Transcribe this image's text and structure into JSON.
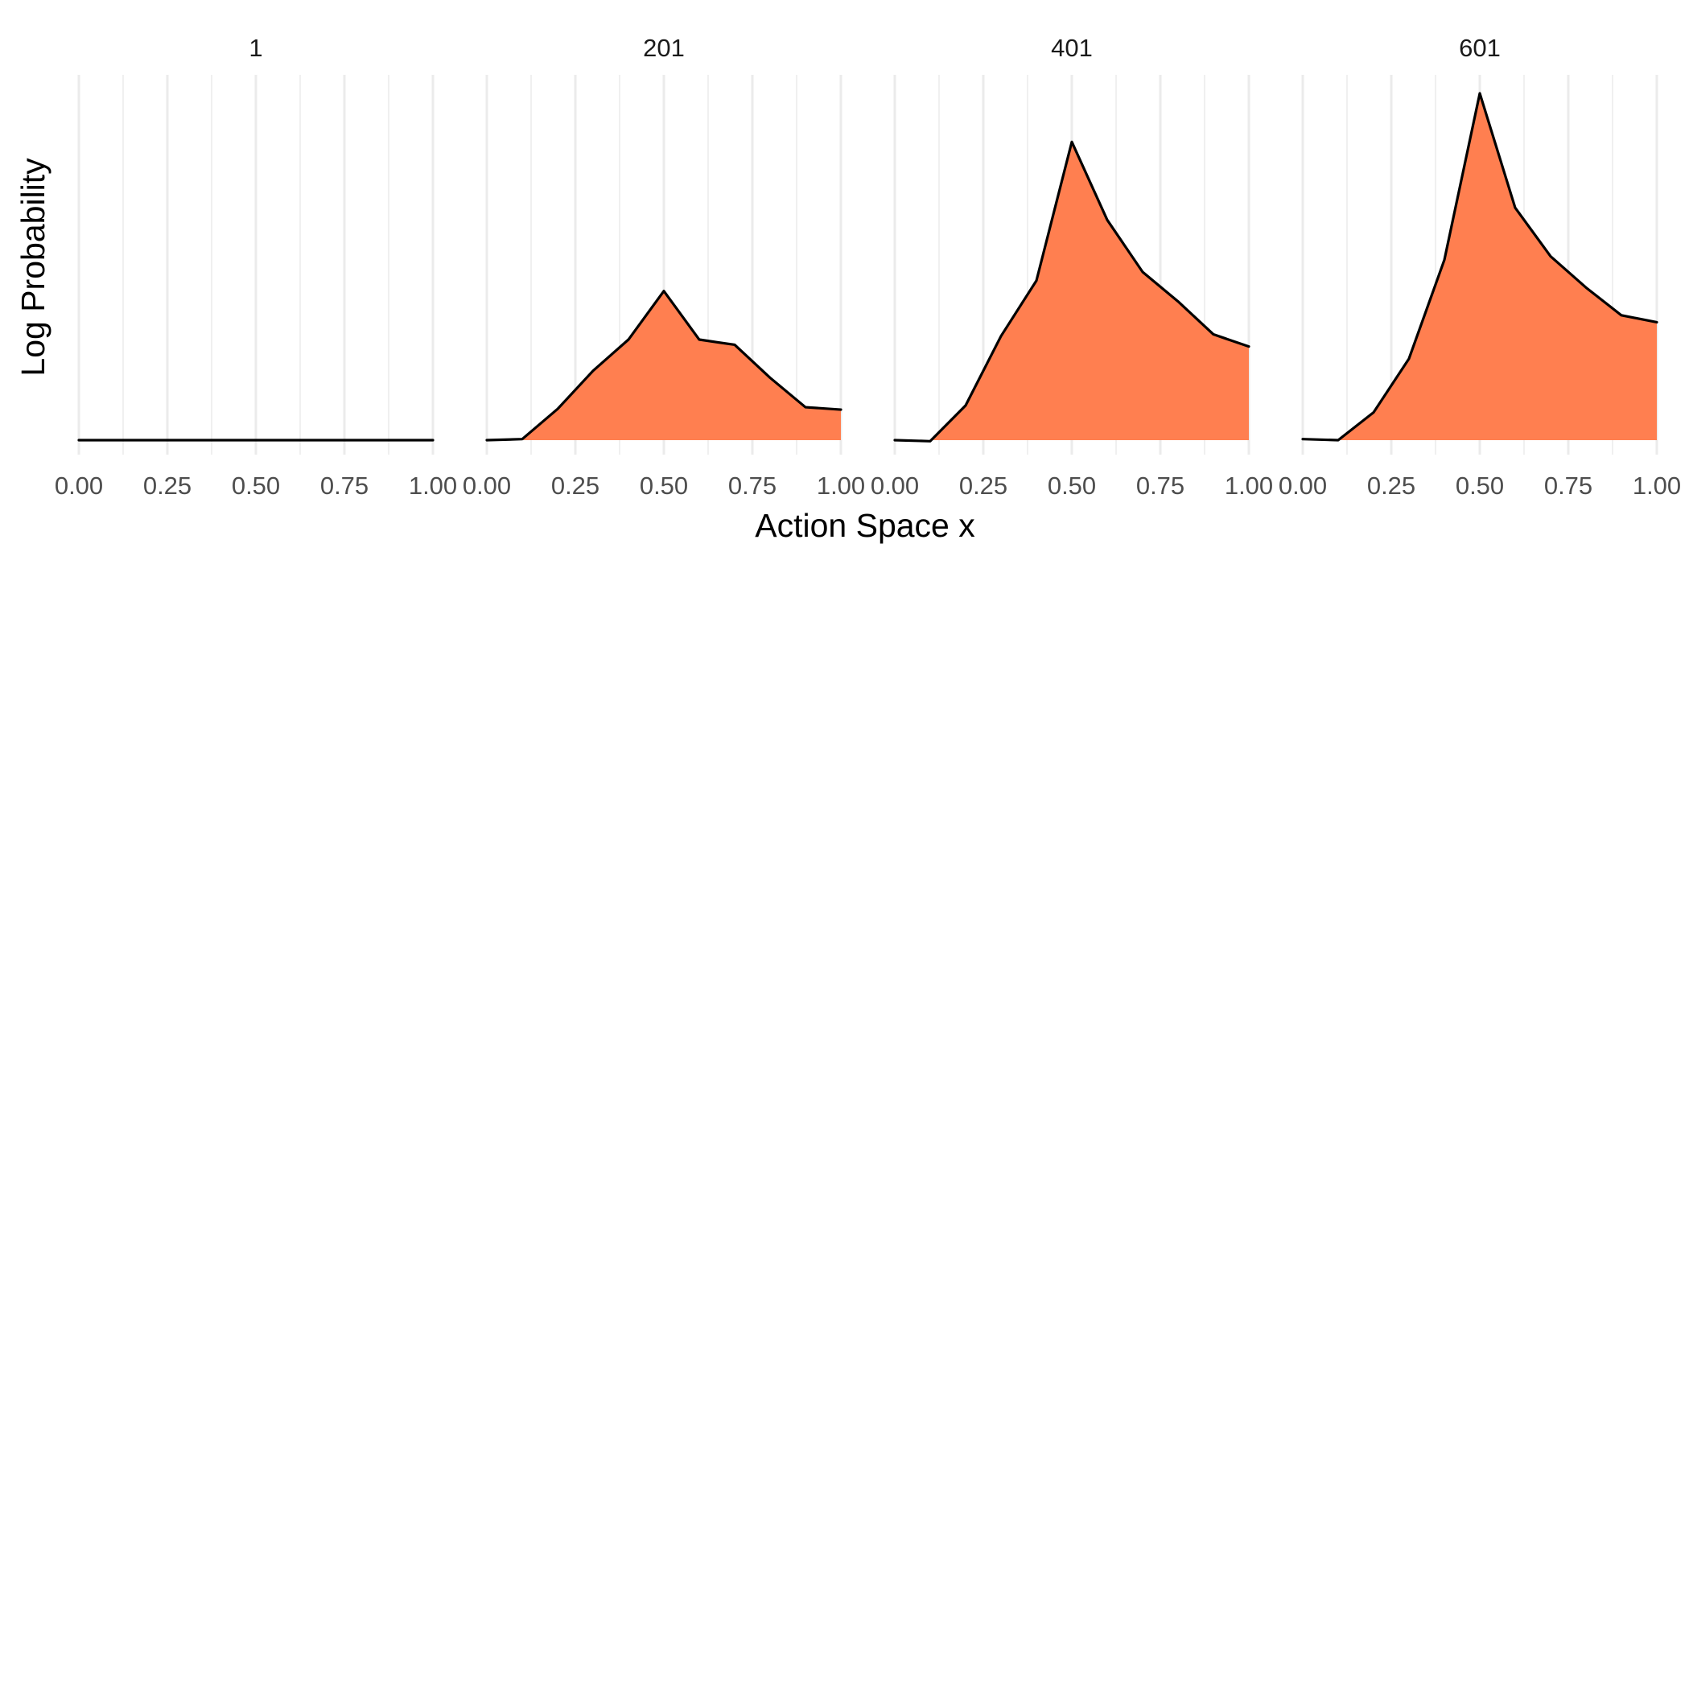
{
  "chart_data": {
    "type": "area",
    "facet_by": "panel label",
    "xlabel": "Action Space x",
    "ylabel": "Log Probability",
    "x_ticks": [
      "0.00",
      "0.25",
      "0.50",
      "0.75",
      "1.00"
    ],
    "xlim": [
      0,
      1
    ],
    "y_tick_labels_shown": false,
    "grid": "vertical",
    "fill_color": "#FF7F50",
    "line_color": "#000000",
    "x": [
      0.0,
      0.1,
      0.2,
      0.3,
      0.4,
      0.5,
      0.6,
      0.7,
      0.8,
      0.9,
      1.0
    ],
    "panels": [
      {
        "label": "1",
        "values": [
          0.0,
          0.0,
          0.0,
          0.0,
          0.0,
          0.0,
          0.0,
          0.0,
          0.0,
          0.0,
          0.0
        ]
      },
      {
        "label": "201",
        "values": [
          0.0,
          0.003,
          0.09,
          0.2,
          0.29,
          0.43,
          0.29,
          0.275,
          0.18,
          0.095,
          0.088
        ]
      },
      {
        "label": "401",
        "values": [
          0.0,
          -0.003,
          0.1,
          0.3,
          0.46,
          0.86,
          0.635,
          0.485,
          0.4,
          0.305,
          0.27
        ]
      },
      {
        "label": "601",
        "values": [
          0.003,
          0.0,
          0.08,
          0.235,
          0.52,
          1.0,
          0.67,
          0.53,
          0.44,
          0.36,
          0.34
        ]
      }
    ]
  }
}
